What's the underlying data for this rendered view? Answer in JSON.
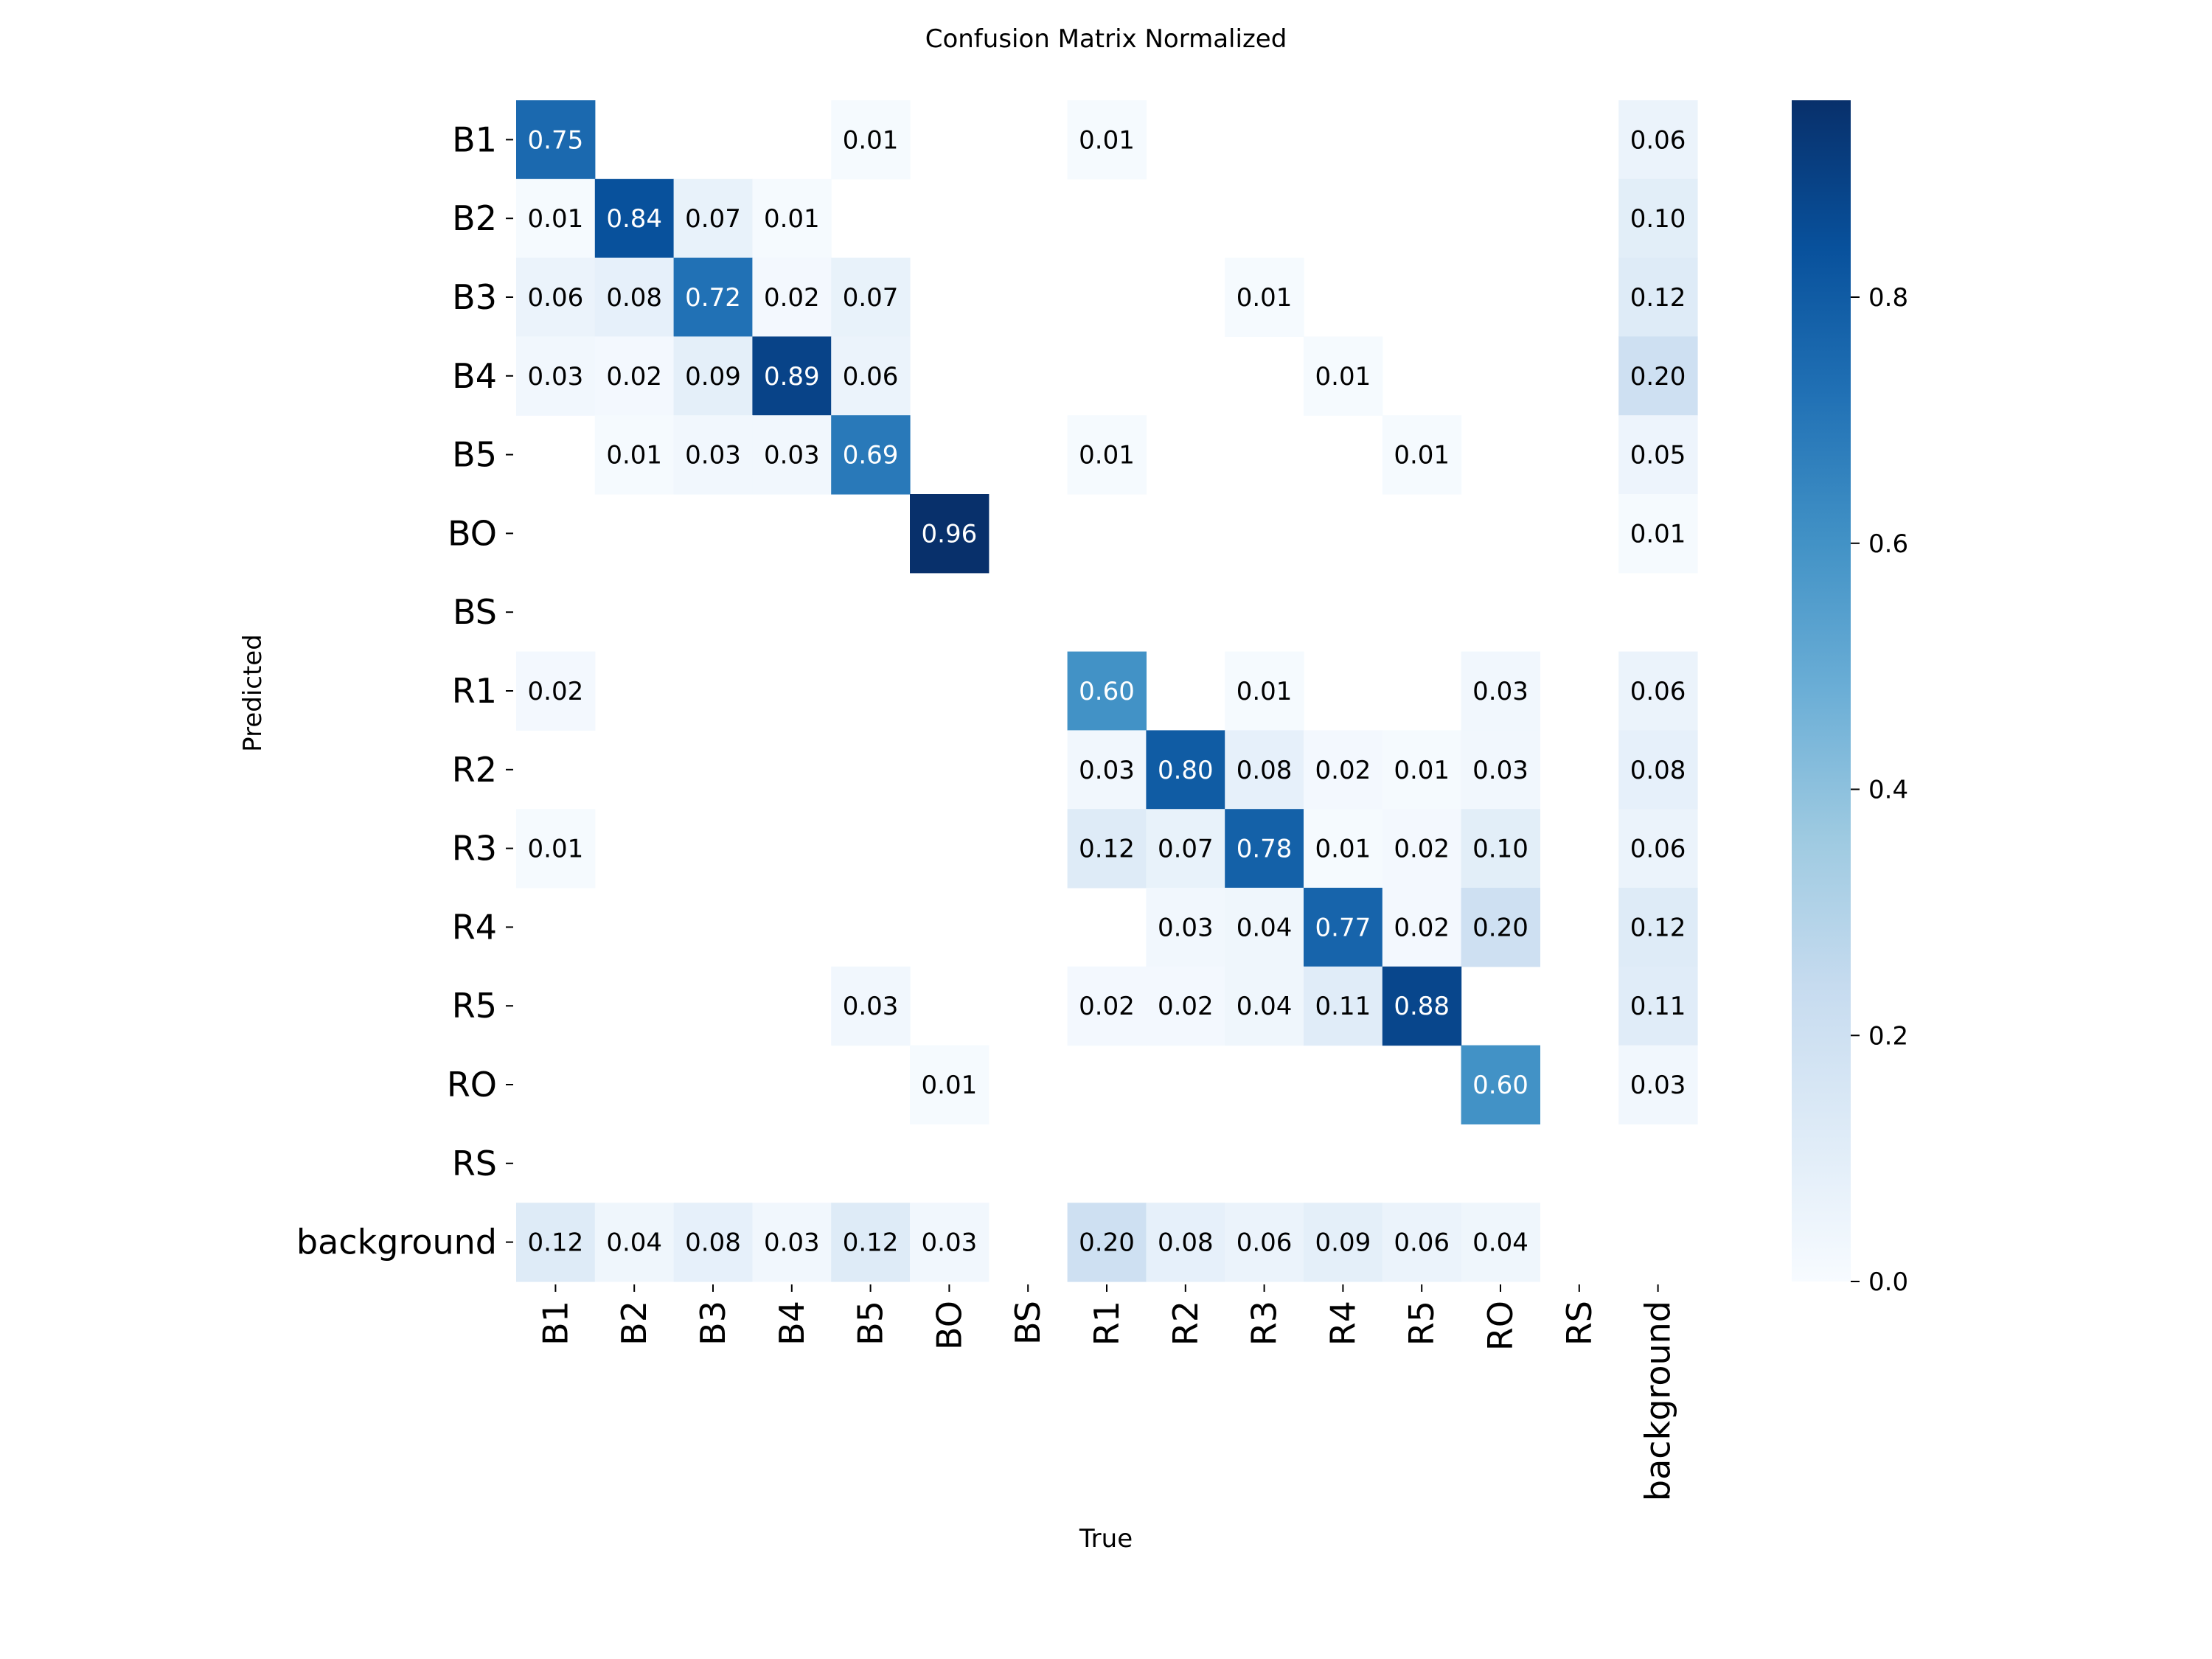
{
  "chart_data": {
    "type": "heatmap",
    "title": "Confusion Matrix Normalized",
    "xlabel": "True",
    "ylabel": "Predicted",
    "labels": [
      "B1",
      "B2",
      "B3",
      "B4",
      "B5",
      "BO",
      "BS",
      "R1",
      "R2",
      "R3",
      "R4",
      "R5",
      "RO",
      "RS",
      "background"
    ],
    "matrix": [
      [
        0.75,
        null,
        null,
        null,
        0.01,
        null,
        null,
        0.01,
        null,
        null,
        null,
        null,
        null,
        null,
        0.06
      ],
      [
        0.01,
        0.84,
        0.07,
        0.01,
        null,
        null,
        null,
        null,
        null,
        null,
        null,
        null,
        null,
        null,
        0.1
      ],
      [
        0.06,
        0.08,
        0.72,
        0.02,
        0.07,
        null,
        null,
        null,
        null,
        0.01,
        null,
        null,
        null,
        null,
        0.12
      ],
      [
        0.03,
        0.02,
        0.09,
        0.89,
        0.06,
        null,
        null,
        null,
        null,
        null,
        0.01,
        null,
        null,
        null,
        0.2
      ],
      [
        null,
        0.01,
        0.03,
        0.03,
        0.69,
        null,
        null,
        0.01,
        null,
        null,
        null,
        0.01,
        null,
        null,
        0.05
      ],
      [
        null,
        null,
        null,
        null,
        null,
        0.96,
        null,
        null,
        null,
        null,
        null,
        null,
        null,
        null,
        0.01
      ],
      [
        null,
        null,
        null,
        null,
        null,
        null,
        null,
        null,
        null,
        null,
        null,
        null,
        null,
        null,
        null
      ],
      [
        0.02,
        null,
        null,
        null,
        null,
        null,
        null,
        0.6,
        null,
        0.01,
        null,
        null,
        0.03,
        null,
        0.06
      ],
      [
        null,
        null,
        null,
        null,
        null,
        null,
        null,
        0.03,
        0.8,
        0.08,
        0.02,
        0.01,
        0.03,
        null,
        0.08
      ],
      [
        0.01,
        null,
        null,
        null,
        null,
        null,
        null,
        0.12,
        0.07,
        0.78,
        0.01,
        0.02,
        0.1,
        null,
        0.06
      ],
      [
        null,
        null,
        null,
        null,
        null,
        null,
        null,
        null,
        0.03,
        0.04,
        0.77,
        0.02,
        0.2,
        null,
        0.12
      ],
      [
        null,
        null,
        null,
        null,
        0.03,
        null,
        null,
        0.02,
        0.02,
        0.04,
        0.11,
        0.88,
        null,
        null,
        0.11
      ],
      [
        null,
        null,
        null,
        null,
        null,
        0.01,
        null,
        null,
        null,
        null,
        null,
        null,
        0.6,
        null,
        0.03
      ],
      [
        null,
        null,
        null,
        null,
        null,
        null,
        null,
        null,
        null,
        null,
        null,
        null,
        null,
        null,
        null
      ],
      [
        0.12,
        0.04,
        0.08,
        0.03,
        0.12,
        0.03,
        null,
        0.2,
        0.08,
        0.06,
        0.09,
        0.06,
        0.04,
        null,
        null
      ]
    ],
    "colormap": "Blues",
    "vmin": 0.0,
    "vmax": 0.96,
    "colorbar_ticks": [
      "0.0",
      "0.2",
      "0.4",
      "0.6",
      "0.8"
    ],
    "colorbar_tick_values": [
      0.0,
      0.2,
      0.4,
      0.6,
      0.8
    ],
    "grid": false,
    "value_format": "2-decimal"
  },
  "colors": {
    "scale": [
      "#f7fbff",
      "#deebf7",
      "#c6dbef",
      "#9ecae1",
      "#6baed6",
      "#4292c6",
      "#2171b5",
      "#08519c",
      "#08306b"
    ],
    "text_dark": "#000000",
    "text_light": "#ffffff"
  }
}
